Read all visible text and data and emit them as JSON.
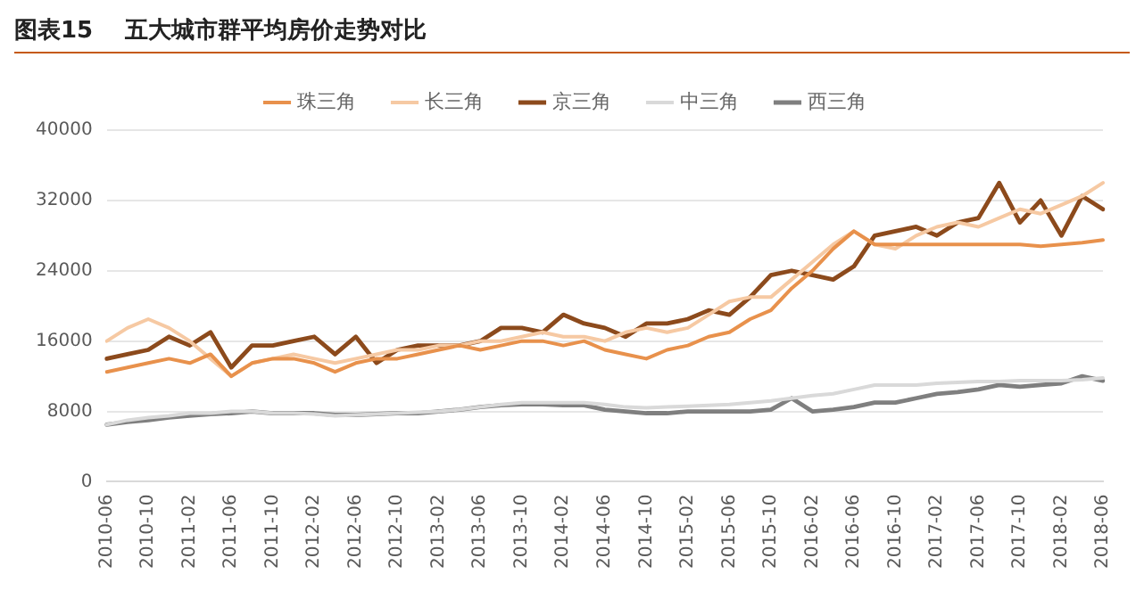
{
  "chart_data": {
    "type": "line",
    "title": "图表15    五大城市群平均房价走势对比",
    "categories": [
      "2010-06",
      null,
      "2010-10",
      null,
      "2011-02",
      null,
      "2011-06",
      null,
      "2011-10",
      null,
      "2012-02",
      null,
      "2012-06",
      null,
      "2012-10",
      null,
      "2013-02",
      null,
      "2013-06",
      null,
      "2013-10",
      null,
      "2014-02",
      null,
      "2014-06",
      null,
      "2014-10",
      null,
      "2015-02",
      null,
      "2015-06",
      null,
      "2015-10",
      null,
      "2016-02",
      null,
      "2016-06",
      null,
      "2016-10",
      null,
      "2017-02",
      null,
      "2017-06",
      null,
      "2017-10",
      null,
      "2018-02",
      null,
      "2018-06"
    ],
    "series": [
      {
        "name": "珠三角",
        "color": "#e8914c",
        "values": [
          12500,
          13000,
          13500,
          14000,
          13500,
          14500,
          12000,
          13500,
          14000,
          14000,
          13500,
          12500,
          13500,
          14000,
          14000,
          14500,
          15000,
          15500,
          15000,
          15500,
          16000,
          16000,
          15500,
          16000,
          15000,
          14500,
          14000,
          15000,
          15500,
          16500,
          17000,
          18500,
          19500,
          22000,
          24000,
          26500,
          28500,
          27000,
          27000,
          27000,
          27000,
          27000,
          27000,
          27000,
          27000,
          26800,
          27000,
          27200,
          27500
        ]
      },
      {
        "name": "长三角",
        "color": "#f6c9a3",
        "values": [
          16000,
          17500,
          18500,
          17500,
          16000,
          14000,
          12000,
          13500,
          14000,
          14500,
          14000,
          13500,
          14000,
          14500,
          15000,
          15000,
          15500,
          15500,
          16000,
          16000,
          16500,
          17000,
          16500,
          16500,
          16000,
          17000,
          17500,
          17000,
          17500,
          19000,
          20500,
          21000,
          21000,
          23000,
          25000,
          27000,
          28500,
          27000,
          26500,
          28000,
          29000,
          29500,
          29000,
          30000,
          31000,
          30500,
          31500,
          32500,
          34000
        ]
      },
      {
        "name": "京三角",
        "color": "#8c4a1c",
        "values": [
          14000,
          14500,
          15000,
          16500,
          15500,
          17000,
          13000,
          15500,
          15500,
          16000,
          16500,
          14500,
          16500,
          13500,
          15000,
          15500,
          15500,
          15500,
          16000,
          17500,
          17500,
          17000,
          19000,
          18000,
          17500,
          16500,
          18000,
          18000,
          18500,
          19500,
          19000,
          21000,
          23500,
          24000,
          23500,
          23000,
          24500,
          28000,
          28500,
          29000,
          28000,
          29500,
          30000,
          34000,
          29500,
          32000,
          28000,
          32500,
          31000
        ]
      },
      {
        "name": "中三角",
        "color": "#d9d9d9",
        "values": [
          6500,
          7000,
          7300,
          7500,
          7800,
          7800,
          8000,
          8000,
          7800,
          7800,
          7700,
          7500,
          7600,
          7700,
          7800,
          7900,
          8000,
          8200,
          8500,
          8800,
          9000,
          9000,
          9000,
          9000,
          8800,
          8500,
          8400,
          8500,
          8600,
          8700,
          8800,
          9000,
          9200,
          9500,
          9800,
          10000,
          10500,
          11000,
          11000,
          11000,
          11200,
          11300,
          11400,
          11400,
          11500,
          11500,
          11500,
          11600,
          11800
        ]
      },
      {
        "name": "西三角",
        "color": "#7f7f7f",
        "values": [
          6500,
          6800,
          7000,
          7300,
          7500,
          7700,
          7800,
          8000,
          7800,
          7800,
          7800,
          7600,
          7600,
          7700,
          7800,
          7800,
          8000,
          8200,
          8500,
          8700,
          8800,
          8800,
          8700,
          8700,
          8200,
          8000,
          7800,
          7800,
          8000,
          8000,
          8000,
          8000,
          8200,
          9500,
          8000,
          8200,
          8500,
          9000,
          9000,
          9500,
          10000,
          10200,
          10500,
          11000,
          10800,
          11000,
          11200,
          12000,
          11500
        ]
      }
    ],
    "ylim": [
      0,
      40000
    ],
    "yticks": [
      0,
      8000,
      16000,
      24000,
      32000,
      40000
    ],
    "grid": "y",
    "legend": "top",
    "marker": "none",
    "line_style": "solid"
  }
}
